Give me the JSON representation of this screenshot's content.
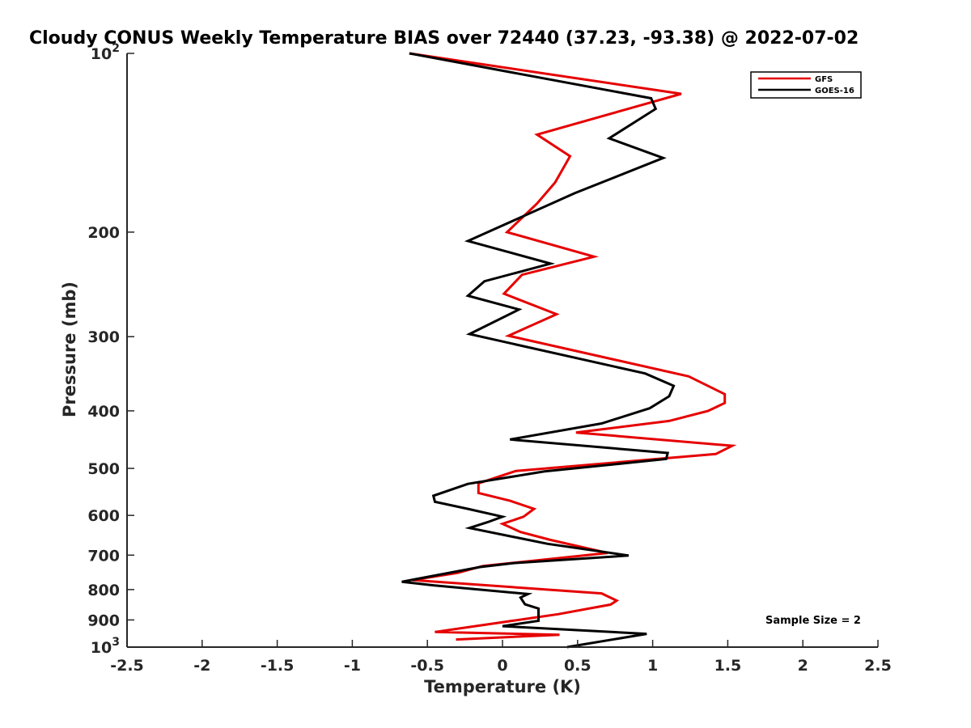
{
  "chart_data": {
    "type": "line",
    "title": "Cloudy CONUS Weekly Temperature BIAS over 72440 (37.23, -93.38) @ 2022-07-02",
    "xlabel": "Temperature (K)",
    "ylabel": "Pressure (mb)",
    "xlim": [
      -2.5,
      2.5
    ],
    "ylim": [
      100,
      1000
    ],
    "y_scale": "log",
    "y_reversed": true,
    "x_ticks": [
      "-2.5",
      "-2",
      "-1.5",
      "-1",
      "-0.5",
      "0",
      "0.5",
      "1",
      "1.5",
      "2",
      "2.5"
    ],
    "y_ticks": [
      {
        "value": 100,
        "base": "10",
        "exp": "2"
      },
      {
        "value": 200,
        "base": "200",
        "exp": ""
      },
      {
        "value": 300,
        "base": "300",
        "exp": ""
      },
      {
        "value": 400,
        "base": "400",
        "exp": ""
      },
      {
        "value": 500,
        "base": "500",
        "exp": ""
      },
      {
        "value": 600,
        "base": "600",
        "exp": ""
      },
      {
        "value": 700,
        "base": "700",
        "exp": ""
      },
      {
        "value": 800,
        "base": "800",
        "exp": ""
      },
      {
        "value": 900,
        "base": "900",
        "exp": ""
      },
      {
        "value": 1000,
        "base": "10",
        "exp": "3"
      }
    ],
    "legend": {
      "position": "top-right"
    },
    "annotation": "Sample Size = 2",
    "series": [
      {
        "name": "GFS",
        "color": "#e60000",
        "points": [
          [
            -0.62,
            100
          ],
          [
            1.19,
            117
          ],
          [
            0.23,
            137
          ],
          [
            0.45,
            149
          ],
          [
            0.35,
            165
          ],
          [
            0.23,
            179
          ],
          [
            0.03,
            200
          ],
          [
            0.61,
            220
          ],
          [
            0.13,
            236
          ],
          [
            0.01,
            254
          ],
          [
            0.36,
            275
          ],
          [
            0.04,
            299
          ],
          [
            1.24,
            350
          ],
          [
            1.48,
            375
          ],
          [
            1.48,
            388
          ],
          [
            1.37,
            400
          ],
          [
            1.11,
            416
          ],
          [
            0.49,
            435
          ],
          [
            1.53,
            458
          ],
          [
            1.42,
            473
          ],
          [
            0.09,
            505
          ],
          [
            -0.16,
            530
          ],
          [
            -0.16,
            550
          ],
          [
            0.05,
            567
          ],
          [
            0.21,
            585
          ],
          [
            0.14,
            603
          ],
          [
            0.0,
            620
          ],
          [
            0.12,
            640
          ],
          [
            0.32,
            660
          ],
          [
            0.7,
            694
          ],
          [
            -0.13,
            730
          ],
          [
            -0.3,
            750
          ],
          [
            -0.6,
            771
          ],
          [
            0.66,
            812
          ],
          [
            0.76,
            835
          ],
          [
            0.72,
            848
          ],
          [
            0.37,
            880
          ],
          [
            -0.45,
            943
          ],
          [
            0.38,
            953
          ],
          [
            -0.31,
            971
          ]
        ]
      },
      {
        "name": "GOES-16",
        "color": "#000000",
        "points": [
          [
            -0.62,
            100
          ],
          [
            0.99,
            119
          ],
          [
            1.02,
            124
          ],
          [
            0.71,
            139
          ],
          [
            1.07,
            150
          ],
          [
            0.48,
            172
          ],
          [
            -0.23,
            207
          ],
          [
            0.32,
            226
          ],
          [
            -0.12,
            242
          ],
          [
            -0.23,
            256
          ],
          [
            0.11,
            270
          ],
          [
            -0.22,
            297
          ],
          [
            0.95,
            346
          ],
          [
            1.14,
            363
          ],
          [
            1.11,
            378
          ],
          [
            0.98,
            396
          ],
          [
            0.66,
            420
          ],
          [
            0.05,
            447
          ],
          [
            1.1,
            471
          ],
          [
            1.09,
            482
          ],
          [
            0.28,
            506
          ],
          [
            -0.23,
            531
          ],
          [
            -0.46,
            556
          ],
          [
            -0.45,
            569
          ],
          [
            -0.23,
            585
          ],
          [
            0.0,
            603
          ],
          [
            -0.1,
            616
          ],
          [
            -0.22,
            630
          ],
          [
            0.3,
            670
          ],
          [
            0.84,
            701
          ],
          [
            0.07,
            722
          ],
          [
            -0.15,
            733
          ],
          [
            -0.67,
            776
          ],
          [
            -0.46,
            787
          ],
          [
            0.17,
            814
          ],
          [
            0.12,
            825
          ],
          [
            0.15,
            847
          ],
          [
            0.24,
            861
          ],
          [
            0.24,
            903
          ],
          [
            0.0,
            922
          ],
          [
            0.96,
            950
          ],
          [
            0.43,
            1000
          ]
        ]
      }
    ]
  }
}
